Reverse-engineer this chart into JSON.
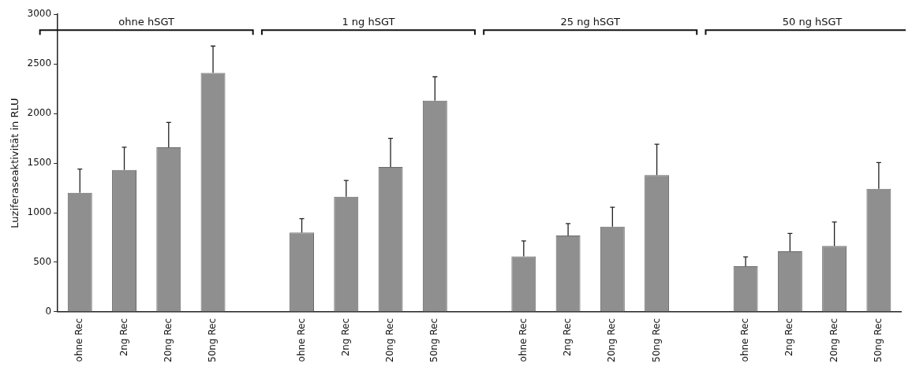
{
  "chart_data": {
    "type": "bar",
    "ylabel": "Luziferaseaktivität in RLU",
    "categories": [
      "ohne Rec",
      "2ng Rec",
      "20ng Rec",
      "50ng Rec",
      null,
      "ohne Rec",
      "2ng Rec",
      "20ng Rec",
      "50ng Rec",
      null,
      "ohne Rec",
      "2ng Rec",
      "20ng Rec",
      "50ng Rec",
      null,
      "ohne Rec",
      "2ng Rec",
      "20ng Rec",
      "50ng Rec"
    ],
    "values": [
      1200,
      1430,
      1660,
      2410,
      null,
      800,
      1160,
      1460,
      2130,
      null,
      560,
      770,
      860,
      1380,
      null,
      460,
      610,
      665,
      1240
    ],
    "errors": [
      [
        1200,
        1440
      ],
      [
        1430,
        1660
      ],
      [
        1660,
        1910
      ],
      [
        2410,
        2680
      ],
      null,
      [
        800,
        940
      ],
      [
        1160,
        1325
      ],
      [
        1460,
        1750
      ],
      [
        2130,
        2370
      ],
      null,
      [
        560,
        715
      ],
      [
        770,
        890
      ],
      [
        860,
        1055
      ],
      [
        1380,
        1690
      ],
      null,
      [
        460,
        555
      ],
      [
        610,
        790
      ],
      [
        665,
        905
      ],
      [
        1240,
        1505
      ]
    ],
    "color": "#8f8f8f",
    "annotations": [
      "ohne hSGT",
      "1 ng hSGT",
      "25 ng hSGT",
      "50 ng hSGT"
    ],
    "ylim": [
      0,
      3000
    ],
    "yticks": [
      0,
      500,
      1000,
      1500,
      2000,
      2500,
      3000
    ],
    "grid": false,
    "legend": false
  }
}
